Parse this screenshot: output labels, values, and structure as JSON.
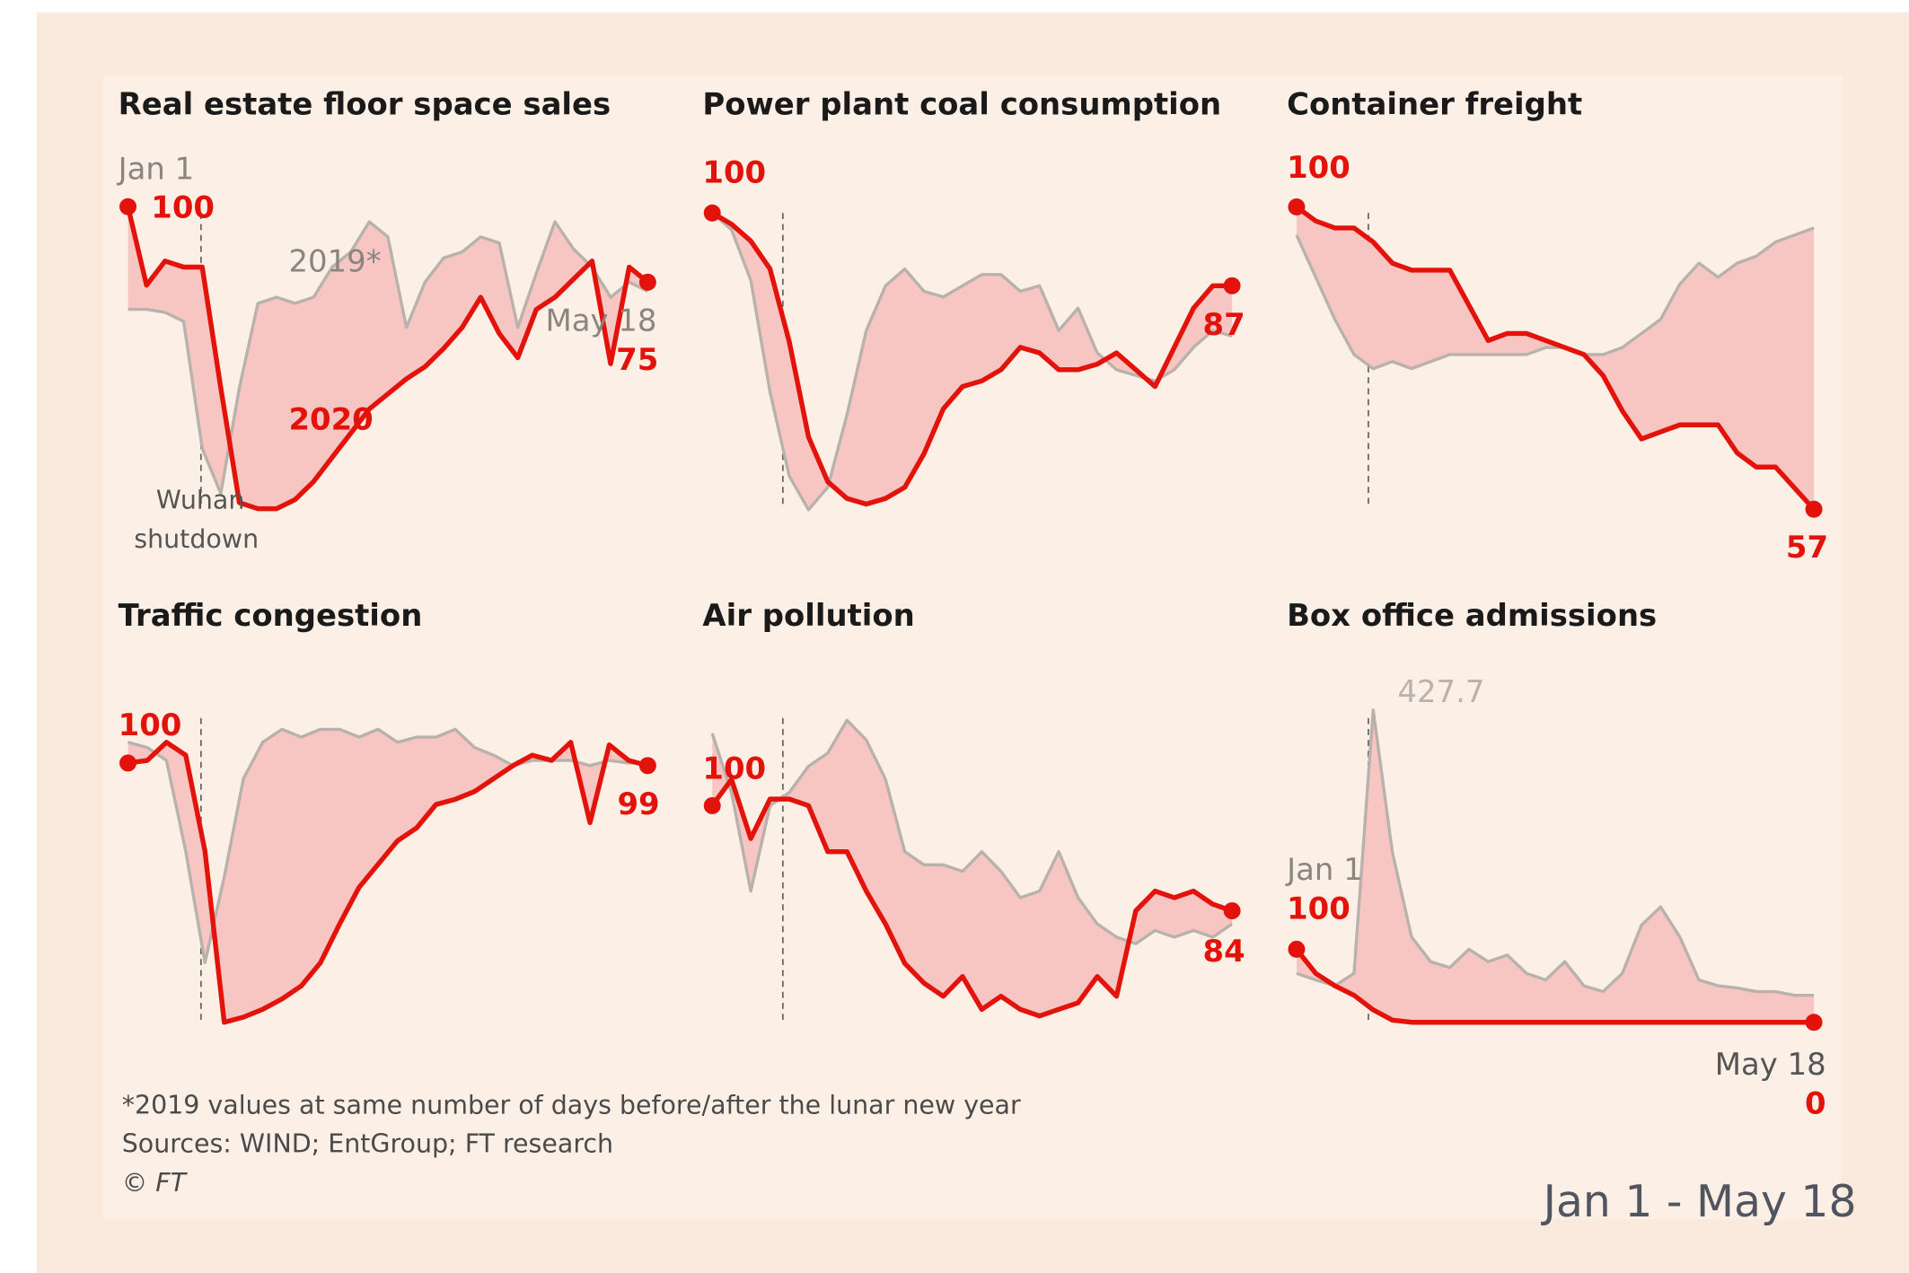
{
  "chart_data": [
    {
      "type": "line",
      "title": "Real estate floor space sales",
      "categories": [
        "Jan 1",
        null,
        null,
        null,
        null,
        null,
        null,
        null,
        null,
        null,
        null,
        null,
        null,
        null,
        null,
        null,
        null,
        null,
        null,
        null,
        null,
        null,
        null,
        null,
        null,
        null,
        null,
        null,
        "May 18"
      ],
      "ylim": [
        0,
        110
      ],
      "annotation": [
        "Wuhan",
        "shutdown"
      ],
      "series": [
        {
          "name": "2020",
          "color": "#e3120b",
          "values": [
            100,
            74,
            82,
            80,
            80,
            40,
            2,
            0,
            0,
            3,
            9,
            17,
            25,
            33,
            38,
            43,
            47,
            53,
            60,
            70,
            58,
            50,
            66,
            70,
            76,
            82,
            48,
            80,
            75
          ]
        },
        {
          "name": "2019*",
          "color": "#b9b2ac",
          "values": [
            66,
            66,
            65,
            62,
            20,
            5,
            40,
            68,
            70,
            68,
            70,
            80,
            85,
            95,
            90,
            60,
            75,
            83,
            85,
            90,
            88,
            60,
            78,
            95,
            86,
            80,
            70,
            75,
            72
          ]
        }
      ]
    },
    {
      "type": "line",
      "title": "Power plant coal consumption",
      "ylim": [
        45,
        105
      ],
      "series": [
        {
          "color": "#e3120b",
          "values": [
            100,
            98,
            95,
            90,
            77,
            60,
            52,
            49,
            48,
            49,
            51,
            57,
            65,
            69,
            70,
            72,
            76,
            75,
            72,
            72,
            73,
            75,
            72,
            69,
            76,
            83,
            87,
            87
          ]
        },
        {
          "color": "#b9b2ac",
          "values": [
            100,
            97,
            88,
            68,
            53,
            47,
            51,
            64,
            79,
            87,
            90,
            86,
            85,
            87,
            89,
            89,
            86,
            87,
            79,
            83,
            75,
            72,
            71,
            70,
            72,
            76,
            79,
            78
          ]
        }
      ]
    },
    {
      "type": "line",
      "title": "Container freight",
      "ylim": [
        55,
        100
      ],
      "series": [
        {
          "color": "#e3120b",
          "values": [
            100,
            98,
            97,
            97,
            95,
            92,
            91,
            91,
            91,
            86,
            81,
            82,
            82,
            81,
            80,
            79,
            76,
            71,
            67,
            68,
            69,
            69,
            69,
            65,
            63,
            63,
            60,
            57
          ]
        },
        {
          "color": "#b9b2ac",
          "values": [
            96,
            90,
            84,
            79,
            77,
            78,
            77,
            78,
            79,
            79,
            79,
            79,
            79,
            80,
            80,
            79,
            79,
            80,
            82,
            84,
            89,
            92,
            90,
            92,
            93,
            95,
            96,
            97
          ]
        }
      ]
    },
    {
      "type": "line",
      "title": "Traffic congestion",
      "ylim": [
        0,
        115
      ],
      "series": [
        {
          "color": "#e3120b",
          "values": [
            100,
            101,
            108,
            103,
            66,
            0,
            2,
            5,
            9,
            14,
            23,
            38,
            52,
            61,
            70,
            75,
            84,
            86,
            89,
            94,
            99,
            103,
            101,
            108,
            77,
            107,
            101,
            99
          ]
        },
        {
          "color": "#b9b2ac",
          "values": [
            108,
            106,
            101,
            66,
            23,
            56,
            94,
            108,
            113,
            110,
            113,
            113,
            110,
            113,
            108,
            110,
            110,
            113,
            106,
            103,
            99,
            101,
            101,
            101,
            99,
            101,
            100,
            100
          ]
        }
      ]
    },
    {
      "type": "line",
      "title": "Air pollution",
      "ylim": [
        65,
        115
      ],
      "series": [
        {
          "color": "#e3120b",
          "values": [
            100,
            104,
            95,
            101,
            101,
            100,
            93,
            93,
            87,
            82,
            76,
            73,
            71,
            74,
            69,
            71,
            69,
            68,
            69,
            70,
            74,
            71,
            84,
            87,
            86,
            87,
            85,
            84
          ]
        },
        {
          "color": "#b9b2ac",
          "values": [
            111,
            102,
            87,
            100,
            102,
            106,
            108,
            113,
            110,
            104,
            93,
            91,
            91,
            90,
            93,
            90,
            86,
            87,
            93,
            86,
            82,
            80,
            79,
            81,
            80,
            81,
            80,
            82
          ]
        }
      ]
    },
    {
      "type": "line",
      "title": "Box office admissions",
      "categories": [
        "Jan 1",
        null,
        null,
        null,
        null,
        null,
        null,
        null,
        null,
        null,
        null,
        null,
        null,
        null,
        null,
        null,
        null,
        null,
        null,
        null,
        null,
        null,
        null,
        null,
        null,
        null,
        null,
        "May 18"
      ],
      "ylim": [
        0,
        430
      ],
      "series": [
        {
          "color": "#e3120b",
          "values": [
            100,
            67,
            50,
            37,
            17,
            3,
            0,
            0,
            0,
            0,
            0,
            0,
            0,
            0,
            0,
            0,
            0,
            0,
            0,
            0,
            0,
            0,
            0,
            0,
            0,
            0,
            0,
            0
          ]
        },
        {
          "color": "#b9b2ac",
          "values": [
            67,
            58,
            50,
            67,
            427.7,
            233,
            117,
            83,
            75,
            100,
            83,
            92,
            67,
            58,
            83,
            50,
            42,
            67,
            133,
            158,
            117,
            58,
            50,
            47,
            42,
            42,
            37,
            37
          ]
        }
      ]
    }
  ],
  "note": "*2019 values at same number of days before/after the lunar new year",
  "source": "Sources: WIND; EntGroup; FT research",
  "credit": "© FT",
  "caption": "Jan 1 - May 18"
}
